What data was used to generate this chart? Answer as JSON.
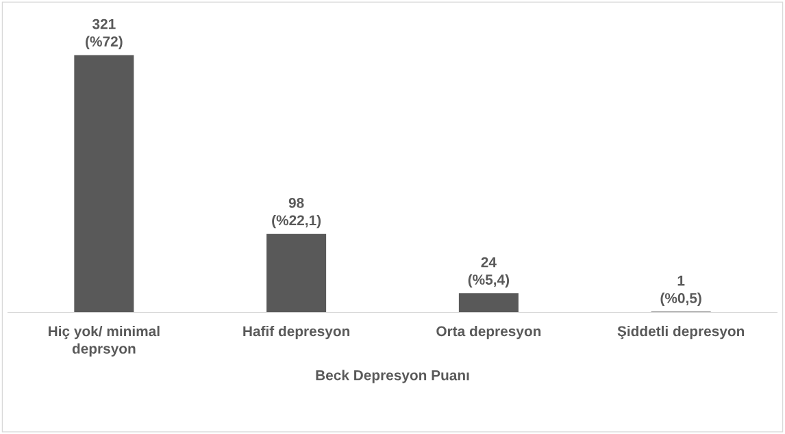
{
  "chart_data": {
    "type": "bar",
    "xlabel": "Beck Depresyon Puanı",
    "categories": [
      "Hiç yok/ minimal\ndeprsyon",
      "Hafif depresyon",
      "Orta depresyon",
      "Şiddetli depresyon"
    ],
    "values": [
      321,
      98,
      24,
      1
    ],
    "value_labels": [
      "321\n(%72)",
      "98\n(%22,1)",
      "24\n(%5,4)",
      "1\n(%0,5)"
    ],
    "color": "#595959",
    "grid": false,
    "legend": false
  }
}
